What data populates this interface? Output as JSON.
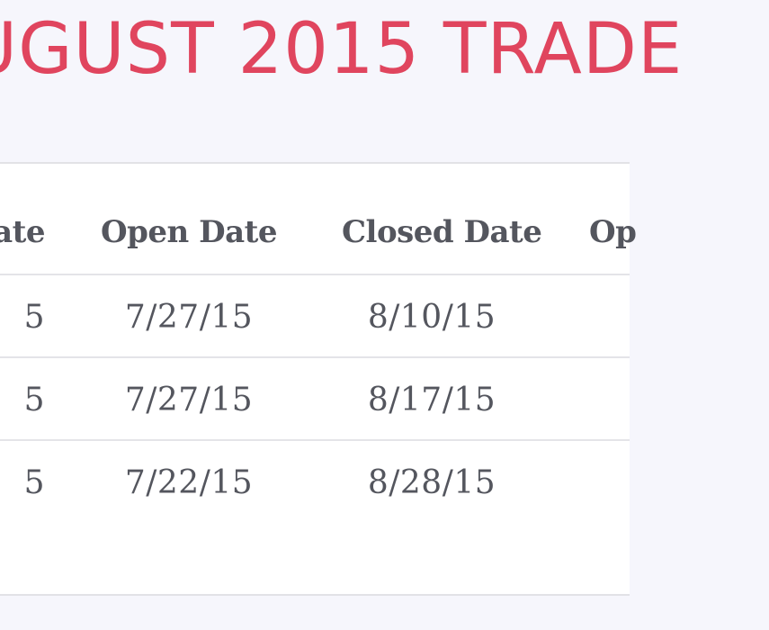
{
  "page": {
    "title": "UGUST 2015 TRADE"
  },
  "table": {
    "headers": {
      "prev_col": "ate",
      "open_date": "Open Date",
      "closed_date": "Closed Date",
      "next_col": "Op"
    },
    "rows": [
      {
        "prev_col": "5",
        "open_date": "7/27/15",
        "closed_date": "8/10/15"
      },
      {
        "prev_col": "5",
        "open_date": "7/27/15",
        "closed_date": "8/17/15"
      },
      {
        "prev_col": "5",
        "open_date": "7/22/15",
        "closed_date": "8/28/15"
      }
    ]
  },
  "colors": {
    "title": "#e0455e",
    "background": "#f6f6fc",
    "panel": "#ffffff",
    "text": "#54565e",
    "divider": "#e4e4e8"
  }
}
